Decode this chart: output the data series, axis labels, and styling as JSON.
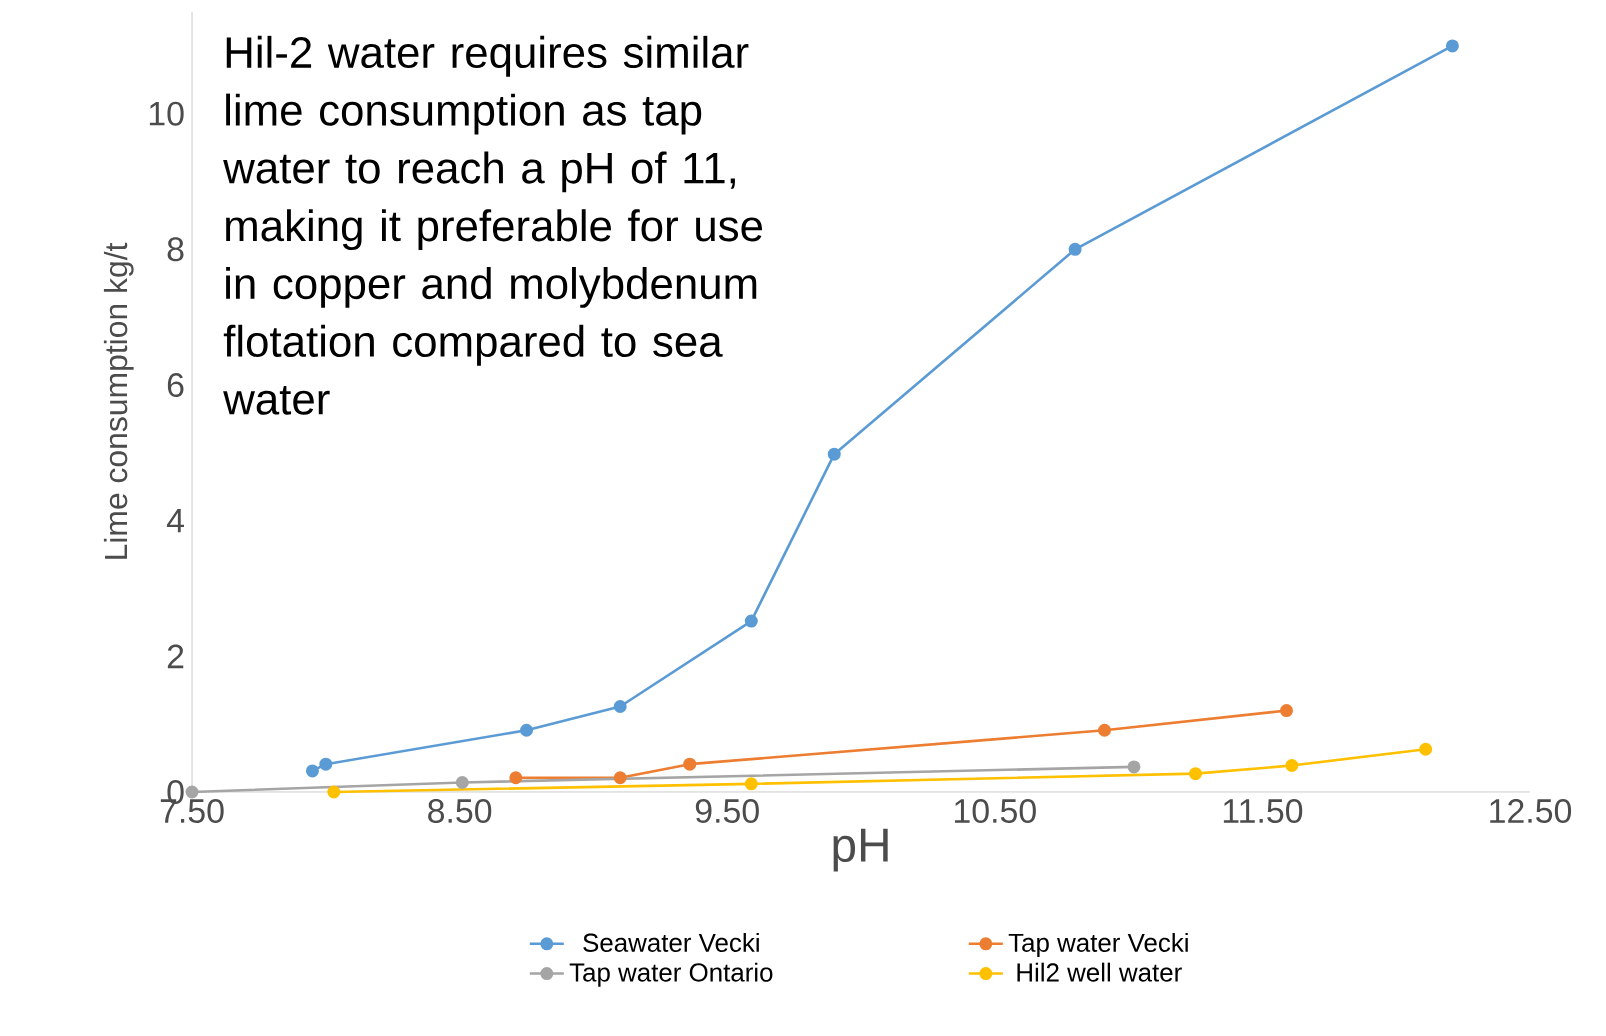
{
  "chart_data": {
    "type": "line",
    "xlabel": "pH",
    "ylabel": "Lime consumption kg/t",
    "xlim": [
      7.5,
      12.5
    ],
    "ylim": [
      0,
      11.5
    ],
    "xticks": [
      {
        "value": 7.5,
        "label": "7.50"
      },
      {
        "value": 8.5,
        "label": "8.50"
      },
      {
        "value": 9.5,
        "label": "9.50"
      },
      {
        "value": 10.5,
        "label": "10.50"
      },
      {
        "value": 11.5,
        "label": "11.50"
      },
      {
        "value": 12.5,
        "label": "12.50"
      }
    ],
    "yticks": [
      0,
      2,
      4,
      6,
      8,
      10
    ],
    "grid": false,
    "legend": "bottom",
    "marker": "circle",
    "line_style": "solid",
    "annotations": [
      "Hil-2 water requires similar lime consumption as tap water to reach a pH of 11, making it preferable for use in copper and molybdenum flotation compared to sea water"
    ],
    "series": [
      {
        "name": "Seawater Vecki",
        "color": "#5b9bd5",
        "x": [
          7.95,
          8.0,
          8.75,
          9.1,
          9.59,
          9.9,
          10.8,
          12.21
        ],
        "values": [
          0.31,
          0.41,
          0.91,
          1.26,
          2.52,
          4.98,
          8.0,
          11.0
        ]
      },
      {
        "name": "Tap water Vecki",
        "color": "#ed7d31",
        "x": [
          8.71,
          9.1,
          9.36,
          10.91,
          11.59
        ],
        "values": [
          0.21,
          0.21,
          0.41,
          0.91,
          1.2
        ]
      },
      {
        "name": "Tap water Ontario",
        "color": "#a5a5a5",
        "x": [
          7.5,
          8.51,
          11.02
        ],
        "values": [
          0,
          0.14,
          0.37
        ]
      },
      {
        "name": "Hil2 well water",
        "color": "#ffc000",
        "x": [
          8.03,
          9.59,
          11.25,
          11.61,
          12.11
        ],
        "values": [
          0,
          0.12,
          0.27,
          0.39,
          0.63
        ]
      }
    ]
  }
}
